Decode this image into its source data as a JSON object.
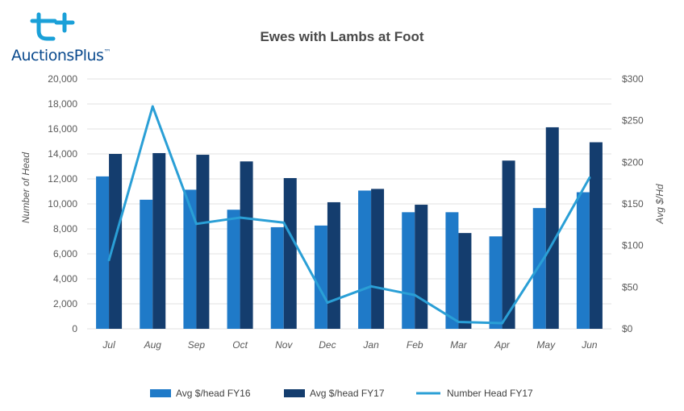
{
  "brand": {
    "name_part1": "Auctions",
    "name_part2": "Plus",
    "trademark": "™",
    "colors": {
      "primary": "#0a4a8e",
      "accent": "#1aa0d8"
    }
  },
  "chart_data": {
    "type": "bar",
    "title": "Ewes with Lambs at Foot",
    "categories": [
      "Jul",
      "Aug",
      "Sep",
      "Oct",
      "Nov",
      "Dec",
      "Jan",
      "Feb",
      "Mar",
      "Apr",
      "May",
      "Jun"
    ],
    "ylabel_left": "Number of Head",
    "ylabel_right": "Avg $/Hd",
    "left_axis": {
      "min": 0,
      "max": 20000,
      "ticks": [
        "0",
        "2,000",
        "4,000",
        "6,000",
        "8,000",
        "10,000",
        "12,000",
        "14,000",
        "16,000",
        "18,000",
        "20,000"
      ]
    },
    "right_axis": {
      "min": 0,
      "max": 300,
      "ticks": [
        "$0",
        "$50",
        "$100",
        "$150",
        "$200",
        "$250",
        "$300"
      ]
    },
    "grid": true,
    "legend_position": "bottom",
    "series": [
      {
        "name": "Avg $/head FY16",
        "kind": "bar",
        "axis": "right",
        "color": "#1f7ac8",
        "values": [
          183,
          155,
          167,
          143,
          122,
          124,
          166,
          140,
          140,
          111,
          145,
          164
        ]
      },
      {
        "name": "Avg $/head FY17",
        "kind": "bar",
        "axis": "right",
        "color": "#143d6e",
        "values": [
          210,
          211,
          209,
          201,
          181,
          152,
          168,
          149,
          115,
          202,
          242,
          224
        ]
      },
      {
        "name": "Number Head FY17",
        "kind": "line",
        "axis": "left",
        "color": "#2a9fd6",
        "values": [
          5500,
          17800,
          8400,
          8900,
          8500,
          2100,
          3400,
          2700,
          550,
          450,
          5900,
          12100
        ]
      }
    ]
  }
}
